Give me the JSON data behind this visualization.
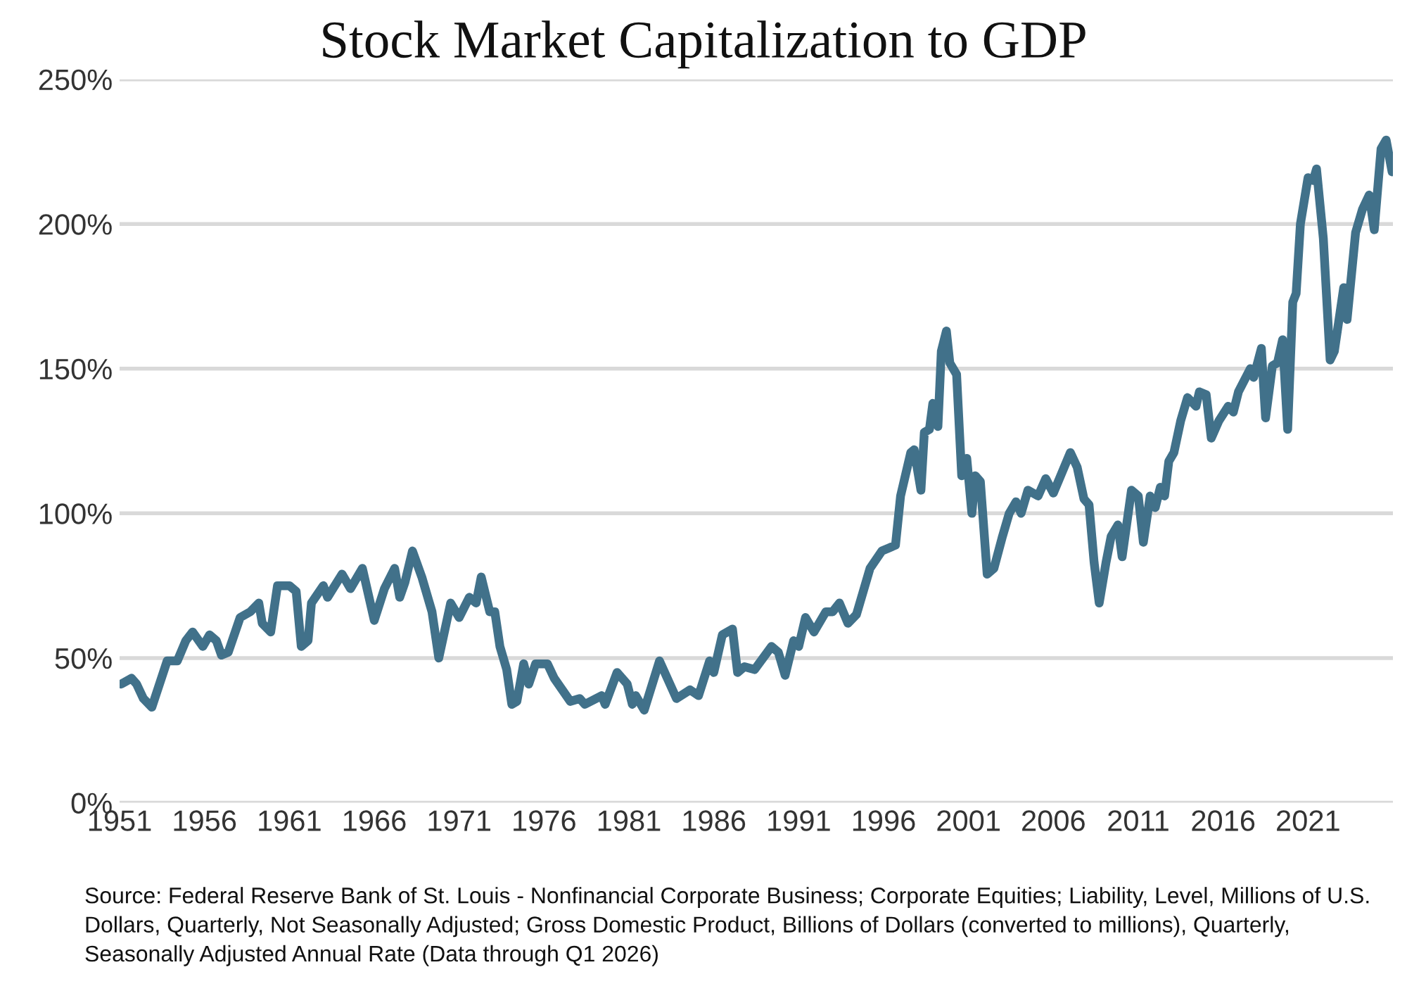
{
  "chart_data": {
    "type": "line",
    "title": "Stock Market Capitalization to GDP",
    "x": [
      1951.1,
      1951.7,
      1952.0,
      1952.4,
      1952.9,
      1953.8,
      1954.4,
      1954.9,
      1955.3,
      1955.9,
      1956.3,
      1956.7,
      1957.0,
      1957.4,
      1958.1,
      1958.7,
      1959.2,
      1959.4,
      1959.9,
      1960.3,
      1961.0,
      1961.4,
      1961.7,
      1962.1,
      1962.3,
      1963.0,
      1963.25,
      1964.1,
      1964.6,
      1965.3,
      1966.0,
      1966.6,
      1967.2,
      1967.5,
      1967.8,
      1968.25,
      1968.8,
      1969.4,
      1969.8,
      1970.5,
      1971.0,
      1971.6,
      1972.0,
      1972.3,
      1972.8,
      1973.1,
      1973.4,
      1973.8,
      1974.1,
      1974.4,
      1974.8,
      1975.1,
      1975.5,
      1976.2,
      1976.6,
      1977.55,
      1978.1,
      1978.4,
      1979.4,
      1979.6,
      1980.3,
      1980.9,
      1981.2,
      1981.4,
      1981.9,
      1982.8,
      1983.8,
      1984.6,
      1985.1,
      1985.75,
      1986.0,
      1986.5,
      1987.1,
      1987.4,
      1987.8,
      1988.4,
      1989.4,
      1989.8,
      1990.2,
      1990.7,
      1991.0,
      1991.4,
      1991.9,
      1992.6,
      1993.0,
      1993.4,
      1993.9,
      1994.4,
      1995.2,
      1995.9,
      1996.3,
      1996.7,
      1997.0,
      1997.6,
      1997.8,
      1998.2,
      1998.4,
      1998.7,
      1998.9,
      1999.2,
      1999.4,
      1999.7,
      1999.9,
      2000.3,
      2000.6,
      2000.9,
      2001.2,
      2001.4,
      2001.7,
      2002.1,
      2002.5,
      2003.0,
      2003.4,
      2003.8,
      2004.1,
      2004.5,
      2005.1,
      2005.55,
      2006.0,
      2007.0,
      2007.4,
      2007.8,
      2008.1,
      2008.4,
      2008.7,
      2009.1,
      2009.4,
      2009.8,
      2010.05,
      2010.6,
      2011.0,
      2011.3,
      2011.7,
      2012.0,
      2012.3,
      2012.55,
      2012.8,
      2013.1,
      2013.5,
      2013.9,
      2014.4,
      2014.6,
      2015.0,
      2015.3,
      2015.75,
      2016.3,
      2016.6,
      2016.9,
      2017.6,
      2017.8,
      2018.25,
      2018.5,
      2018.9,
      2019.2,
      2019.5,
      2019.8,
      2020.1,
      2020.3,
      2020.55,
      2021.0,
      2021.3,
      2021.5,
      2021.9,
      2022.3,
      2022.55,
      2023.1,
      2023.3,
      2023.8,
      2024.2,
      2024.6,
      2024.9,
      2025.3,
      2025.6,
      2025.95
    ],
    "series": [
      {
        "color": "#41718a",
        "values": [
          41,
          43,
          41,
          36,
          33,
          49,
          49,
          56,
          59,
          54,
          58,
          56,
          51,
          52,
          64,
          66,
          69,
          62,
          59,
          75,
          75,
          73,
          54,
          56,
          69,
          75,
          71,
          79,
          74,
          81,
          63,
          74,
          81,
          71,
          76,
          87,
          78,
          66,
          50,
          69,
          64,
          71,
          69,
          78,
          66,
          66,
          54,
          46,
          34,
          35,
          48,
          41,
          48,
          48,
          43,
          35,
          36,
          34,
          37,
          34,
          45,
          41,
          34,
          37,
          32,
          49,
          36,
          39,
          37,
          49,
          45,
          58,
          60,
          45,
          47,
          46,
          54,
          52,
          44,
          56,
          54,
          64,
          59,
          66,
          66,
          69,
          62,
          65,
          81,
          87,
          88,
          89,
          106,
          121,
          122,
          108,
          128,
          129,
          138,
          130,
          156,
          163,
          152,
          148,
          113,
          119,
          100,
          113,
          111,
          79,
          81,
          92,
          100,
          104,
          100,
          108,
          106,
          112,
          107,
          121,
          116,
          105,
          103,
          83,
          69,
          83,
          92,
          96,
          85,
          108,
          106,
          90,
          106,
          102,
          109,
          106,
          118,
          121,
          132,
          140,
          137,
          142,
          141,
          126,
          132,
          137,
          135,
          142,
          150,
          147,
          157,
          133,
          151,
          152,
          160,
          129,
          173,
          176,
          200,
          216,
          215,
          219,
          195,
          153,
          156,
          178,
          167,
          197,
          205,
          210,
          198,
          226,
          229,
          218
        ]
      }
    ],
    "xlim": [
      1951,
      2026
    ],
    "xticks": [
      1951,
      1956,
      1961,
      1966,
      1971,
      1976,
      1981,
      1986,
      1991,
      1996,
      2001,
      2006,
      2011,
      2016,
      2021
    ],
    "ylim": [
      0,
      250
    ],
    "yticks": [
      {
        "value": 0,
        "label": "0%"
      },
      {
        "value": 50,
        "label": "50%"
      },
      {
        "value": 100,
        "label": "100%"
      },
      {
        "value": 150,
        "label": "150%"
      },
      {
        "value": 200,
        "label": "200%"
      },
      {
        "value": 250,
        "label": "250%"
      }
    ],
    "grid": "y",
    "line_style": "solid",
    "annotations": [
      "Source: Federal Reserve Bank of St. Louis - Nonfinancial Corporate Business; Corporate Equities; Liability, Level, Millions of U.S. Dollars, Quarterly, Not Seasonally Adjusted; Gross Domestic Product, Billions of Dollars (converted to millions), Quarterly, Seasonally Adjusted Annual Rate (Data through Q1 2026)"
    ]
  }
}
